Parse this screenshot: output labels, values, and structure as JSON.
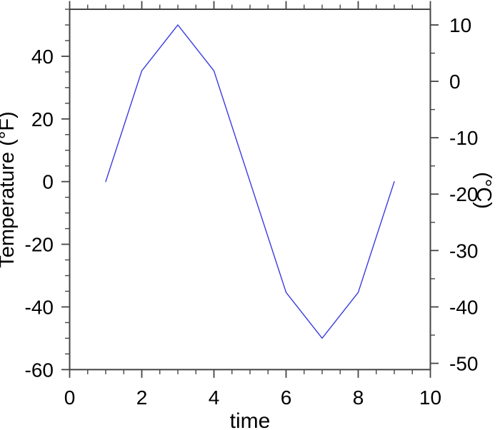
{
  "chart_data": {
    "type": "line",
    "title": "",
    "xlabel": "time",
    "ylabel_left": "Temperature (°F)",
    "ylabel_right": "(°C)",
    "x_range": [
      0,
      10
    ],
    "y_range_f": [
      -60,
      55
    ],
    "x": [
      1,
      2,
      3,
      4,
      5,
      6,
      7,
      8,
      9
    ],
    "series": [
      {
        "name": "temperature_f",
        "values": [
          0,
          35.36,
          50,
          35.36,
          0,
          -35.36,
          -50,
          -35.36,
          0
        ]
      }
    ],
    "x_major_ticks": [
      0,
      2,
      4,
      6,
      8,
      10
    ],
    "x_major_tick_labels": [
      "0",
      "2",
      "4",
      "6",
      "8",
      "10"
    ],
    "x_minor_step": 0.5,
    "f_major_ticks": [
      40,
      20,
      0,
      -20,
      -40,
      -60
    ],
    "f_major_tick_labels": [
      "40",
      "20",
      "0",
      "-20",
      "-40",
      "-60"
    ],
    "f_minor_step": 5,
    "c_major_ticks": [
      10,
      0,
      -10,
      -20,
      -30,
      -40,
      -50
    ],
    "c_major_tick_labels": [
      "10",
      "0",
      "-10",
      "-20",
      "-30",
      "-40",
      "-50"
    ],
    "c_minor_step": 5,
    "grid": "off",
    "legend": "none",
    "line_color": "#3a3ae2",
    "axis_color": "#454545",
    "text_color": "#000000",
    "background_color": "#ffffff"
  }
}
